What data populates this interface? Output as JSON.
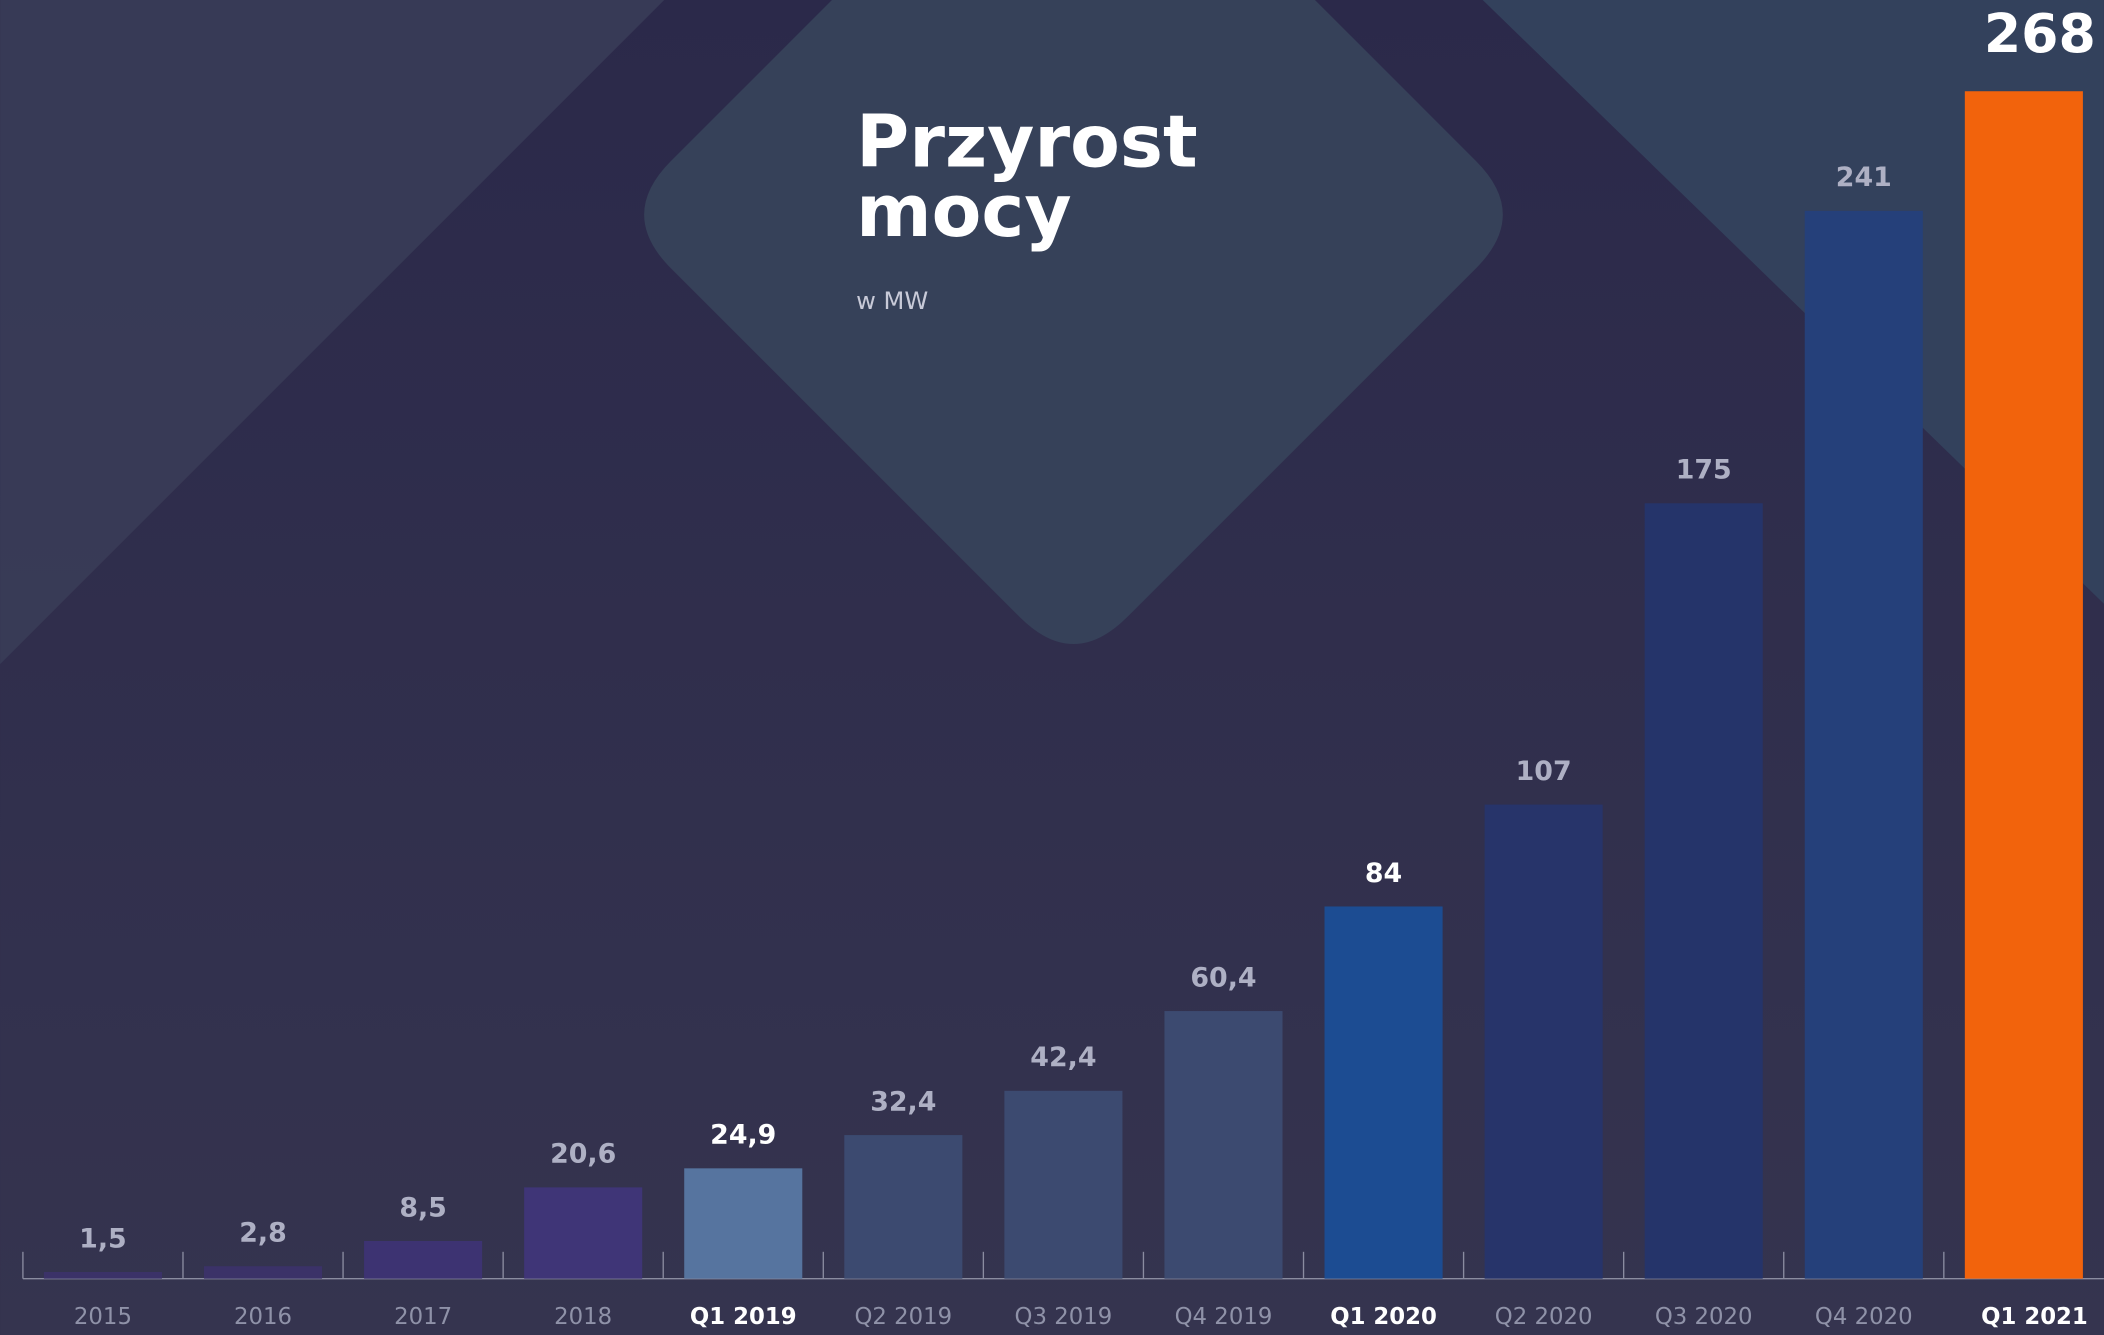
{
  "chart_data": {
    "type": "bar",
    "title": "Przyrost mocy",
    "subtitle": "w MW",
    "categories": [
      "2015",
      "2016",
      "2017",
      "2018",
      "Q1 2019",
      "Q2 2019",
      "Q3 2019",
      "Q4 2019",
      "Q1 2020",
      "Q2 2020",
      "Q3 2020",
      "Q4 2020",
      "Q1 2021"
    ],
    "values": [
      1.5,
      2.8,
      8.5,
      20.6,
      24.9,
      32.4,
      42.4,
      60.4,
      84,
      107,
      175,
      241,
      268
    ],
    "value_labels": [
      "1,5",
      "2,8",
      "8,5",
      "20,6",
      "24,9",
      "32,4",
      "42,4",
      "60,4",
      "84",
      "107",
      "175",
      "241",
      "268"
    ],
    "colors": [
      "#3b3268",
      "#3b3268",
      "#3d3372",
      "#3f3577",
      "#56749f",
      "#3c4a70",
      "#3c4a70",
      "#3c4a70",
      "#1c4c92",
      "#27346a",
      "#25346a",
      "#25407a",
      "#f2630c"
    ],
    "ylim": [
      0,
      268
    ]
  }
}
